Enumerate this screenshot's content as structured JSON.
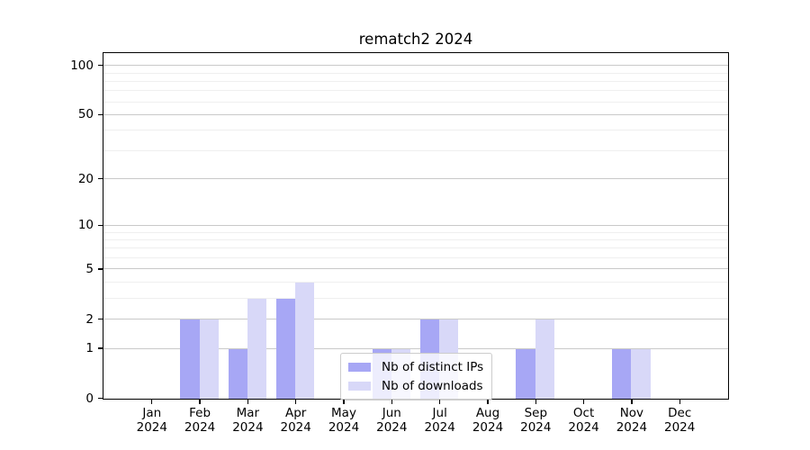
{
  "figure": {
    "background": "#ffffff",
    "text_color": "#000000"
  },
  "chart_data": {
    "type": "bar",
    "title": "rematch2 2024",
    "x": {
      "categories": [
        "Jan",
        "Feb",
        "Mar",
        "Apr",
        "May",
        "Jun",
        "Jul",
        "Aug",
        "Sep",
        "Oct",
        "Nov",
        "Dec"
      ],
      "year_label": "2024"
    },
    "series": [
      {
        "name": "Nb of distinct IPs",
        "color": "#a7a7f5",
        "values": [
          0,
          2,
          1,
          3,
          0,
          1,
          2,
          0,
          1,
          0,
          1,
          0
        ]
      },
      {
        "name": "Nb of downloads",
        "color": "#d8d8f8",
        "values": [
          0,
          2,
          3,
          4,
          0,
          1,
          2,
          0,
          2,
          0,
          1,
          0
        ]
      }
    ],
    "y_axis": {
      "scale": "log1p",
      "major_ticks": [
        0,
        1,
        2,
        5,
        10,
        20,
        50,
        100
      ],
      "minor_gridlines": [
        3,
        4,
        6,
        7,
        8,
        9,
        30,
        40,
        60,
        70,
        80,
        90
      ],
      "top_value": 118,
      "major_grid_color": "#c9c9c9",
      "minor_grid_color": "#efefef"
    },
    "grid": true,
    "legend_position": "lower center, inside axes"
  }
}
